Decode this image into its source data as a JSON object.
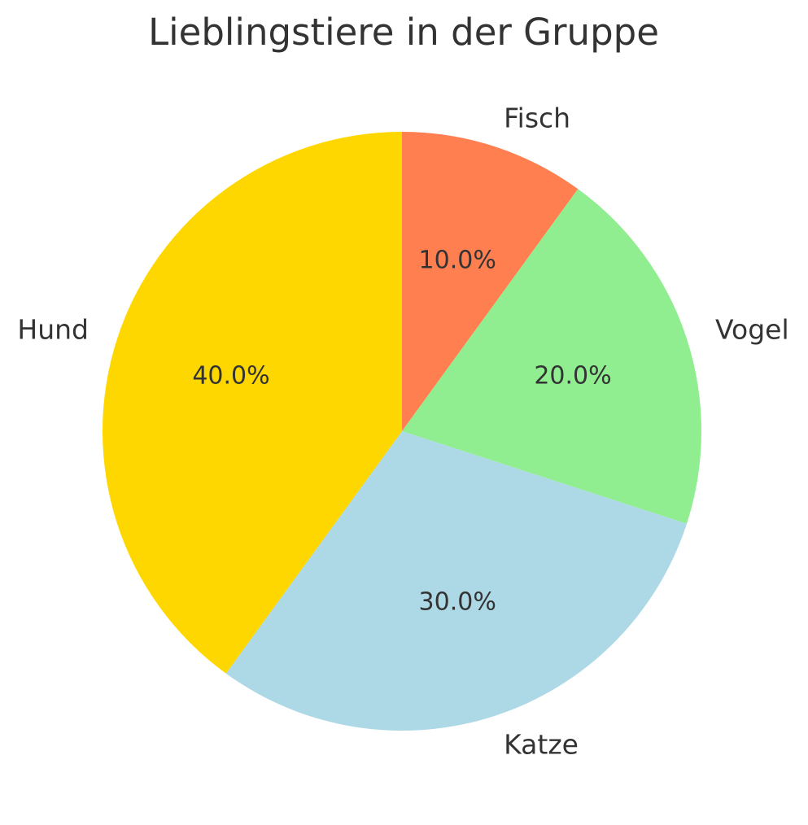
{
  "chart_data": {
    "type": "pie",
    "title": "Lieblingstiere in der Gruppe",
    "categories": [
      "Fisch",
      "Vogel",
      "Katze",
      "Hund"
    ],
    "values": [
      10,
      20,
      30,
      40
    ],
    "pct_labels": [
      "10.0%",
      "20.0%",
      "30.0%",
      "40.0%"
    ],
    "colors": [
      "#ff7f50",
      "#90ee90",
      "#add8e6",
      "#ffd700"
    ],
    "start_angle_deg": 90,
    "direction": "clockwise",
    "label_distance": 1.1,
    "pct_distance": 0.6,
    "text_color": "#333333",
    "background_color": "#ffffff",
    "legend": "none"
  }
}
